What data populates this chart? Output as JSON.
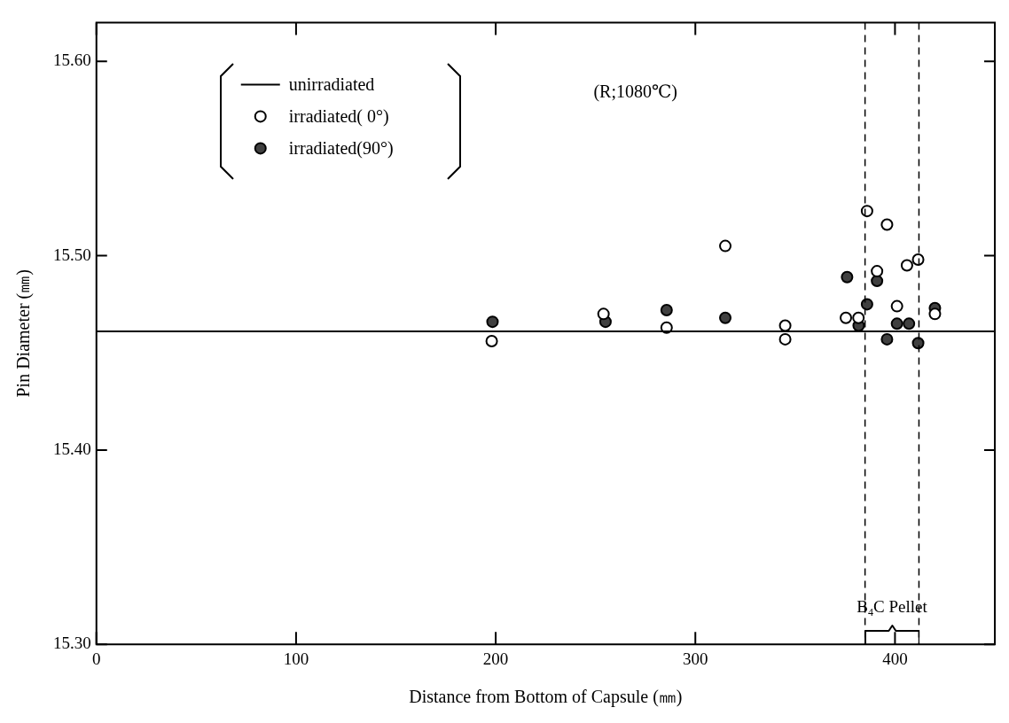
{
  "chart_data": {
    "type": "scatter",
    "xlabel": "Distance from Bottom of Capsule (㎜)",
    "ylabel": "Pin Diameter (㎜)",
    "xlim": [
      0,
      450
    ],
    "ylim": [
      15.3,
      15.62
    ],
    "xticks": [
      0,
      100,
      200,
      300,
      400
    ],
    "yticks": [
      {
        "value": 15.3,
        "label": "15.30"
      },
      {
        "value": 15.4,
        "label": "15.40"
      },
      {
        "value": 15.5,
        "label": "15.50"
      },
      {
        "value": 15.6,
        "label": "15.60"
      }
    ],
    "legend": "top left",
    "marker": "circle",
    "series": [
      {
        "name": "unirradiated",
        "type": "line",
        "marker": "none",
        "color": "#000000",
        "x": [
          0,
          450
        ],
        "values": [
          15.461,
          15.461
        ]
      },
      {
        "name": "irradiated( 0°)",
        "color": "#ffffff",
        "x": [
          198,
          254,
          285.6,
          315,
          345,
          345,
          375.4,
          381.7,
          386,
          391,
          396,
          401,
          406,
          411.6,
          420
        ],
        "values": [
          15.456,
          15.47,
          15.463,
          15.505,
          15.464,
          15.457,
          15.468,
          15.468,
          15.523,
          15.492,
          15.516,
          15.474,
          15.495,
          15.498,
          15.47
        ]
      },
      {
        "name": "irradiated(90°)",
        "color": "#404040",
        "x": [
          198.4,
          255,
          285.6,
          315,
          376,
          381.8,
          386,
          391,
          396,
          401,
          407,
          411.6,
          420
        ],
        "values": [
          15.466,
          15.466,
          15.472,
          15.468,
          15.489,
          15.464,
          15.475,
          15.487,
          15.457,
          15.465,
          15.465,
          15.455,
          15.473
        ]
      }
    ],
    "ref_lines": [
      {
        "axis": "x",
        "value": 385,
        "line_style": "dashed",
        "color": "#000000"
      },
      {
        "axis": "x",
        "value": 412,
        "line_style": "dashed",
        "color": "#000000"
      }
    ],
    "annotations": [
      "(R;1080℃)",
      "B$_{4}$C Pellet"
    ]
  }
}
